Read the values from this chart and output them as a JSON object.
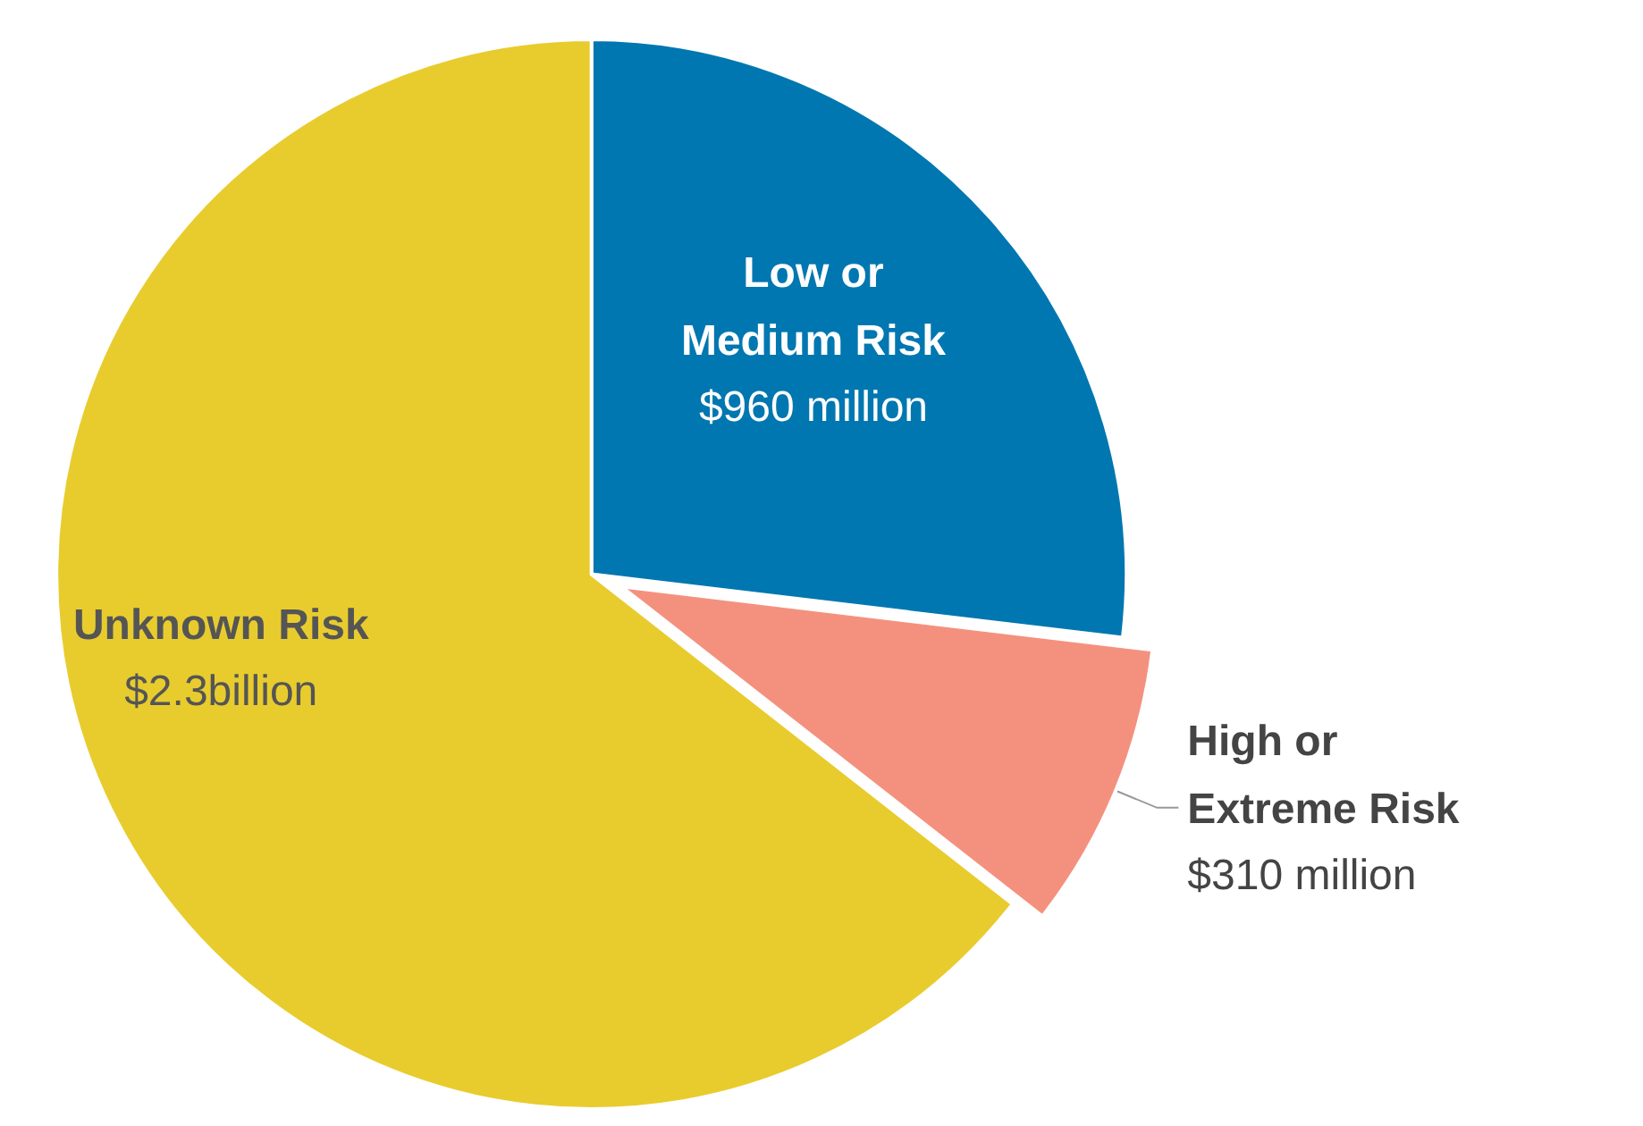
{
  "chart_data": {
    "type": "pie",
    "categories": [
      "Low or Medium Risk",
      "High or Extreme Risk",
      "Unknown Risk"
    ],
    "values": [
      960000000,
      310000000,
      2300000000
    ],
    "colors": [
      "#0077b0",
      "#f4917e",
      "#e8cc2e"
    ],
    "value_labels": [
      "$960 million",
      "$310 million",
      "$2.3billion"
    ],
    "legend": false
  }
}
